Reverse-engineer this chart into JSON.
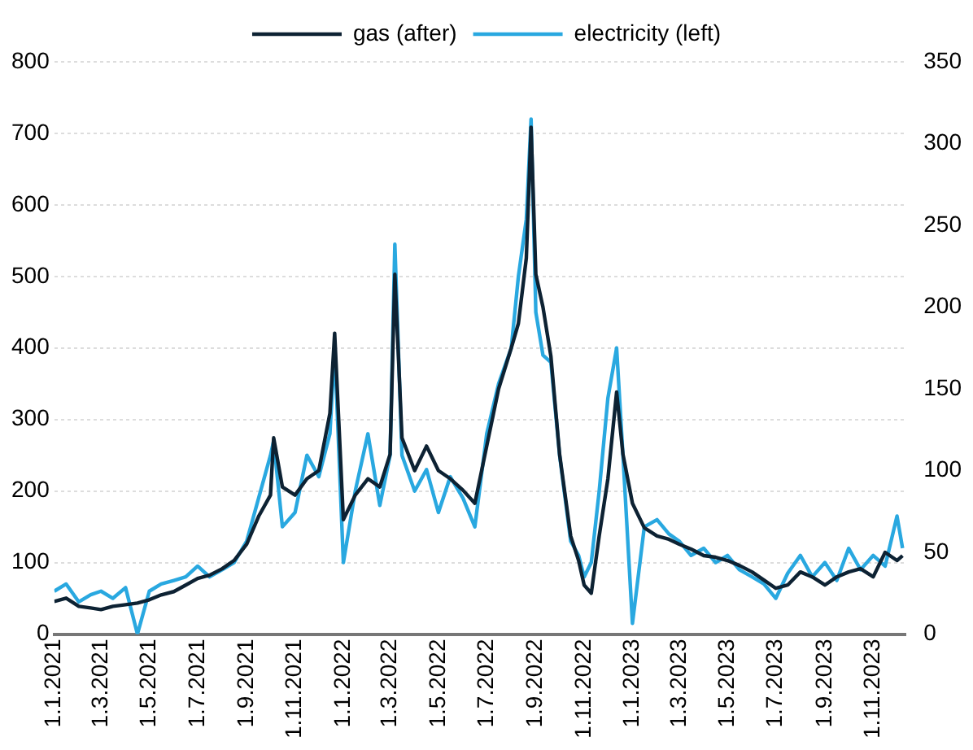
{
  "chart_data": {
    "type": "line",
    "x": [
      "2021-01-01",
      "2021-01-16",
      "2021-02-01",
      "2021-02-16",
      "2021-03-01",
      "2021-03-16",
      "2021-04-01",
      "2021-04-16",
      "2021-05-01",
      "2021-05-16",
      "2021-06-01",
      "2021-06-16",
      "2021-07-01",
      "2021-07-16",
      "2021-08-01",
      "2021-08-16",
      "2021-09-01",
      "2021-09-16",
      "2021-10-01",
      "2021-10-05",
      "2021-10-16",
      "2021-11-01",
      "2021-11-16",
      "2021-12-01",
      "2021-12-15",
      "2021-12-21",
      "2022-01-01",
      "2022-01-16",
      "2022-02-01",
      "2022-02-16",
      "2022-03-01",
      "2022-03-07",
      "2022-03-16",
      "2022-04-01",
      "2022-04-16",
      "2022-05-01",
      "2022-05-16",
      "2022-06-01",
      "2022-06-16",
      "2022-07-01",
      "2022-07-16",
      "2022-08-01",
      "2022-08-10",
      "2022-08-20",
      "2022-08-26",
      "2022-09-01",
      "2022-09-10",
      "2022-09-20",
      "2022-10-01",
      "2022-10-15",
      "2022-10-25",
      "2022-11-01",
      "2022-11-10",
      "2022-11-20",
      "2022-12-01",
      "2022-12-12",
      "2022-12-20",
      "2023-01-01",
      "2023-01-16",
      "2023-02-01",
      "2023-02-16",
      "2023-03-01",
      "2023-03-16",
      "2023-04-01",
      "2023-04-16",
      "2023-05-01",
      "2023-05-16",
      "2023-06-01",
      "2023-06-16",
      "2023-07-01",
      "2023-07-16",
      "2023-08-01",
      "2023-08-16",
      "2023-09-01",
      "2023-09-16",
      "2023-10-01",
      "2023-10-16",
      "2023-11-01",
      "2023-11-16",
      "2023-12-01",
      "2023-12-08"
    ],
    "series": [
      {
        "name": "electricity (left)",
        "color": "#29a8e0",
        "values": [
          60,
          70,
          45,
          55,
          60,
          50,
          65,
          0,
          60,
          70,
          75,
          80,
          95,
          80,
          90,
          100,
          130,
          190,
          250,
          270,
          150,
          170,
          250,
          220,
          280,
          400,
          100,
          200,
          280,
          180,
          250,
          545,
          250,
          200,
          230,
          170,
          220,
          190,
          150,
          280,
          350,
          400,
          500,
          580,
          720,
          450,
          390,
          380,
          250,
          130,
          110,
          80,
          100,
          200,
          330,
          400,
          250,
          15,
          150,
          160,
          140,
          130,
          110,
          120,
          100,
          110,
          90,
          80,
          70,
          50,
          85,
          110,
          80,
          100,
          75,
          120,
          90,
          110,
          95,
          165,
          120
        ]
      },
      {
        "name": "gas (after)",
        "color": "#0d2233",
        "axis": "y2",
        "values": [
          20,
          22,
          17,
          16,
          15,
          17,
          18,
          19,
          21,
          24,
          26,
          30,
          34,
          36,
          40,
          45,
          55,
          72,
          85,
          120,
          90,
          85,
          95,
          100,
          135,
          184,
          70,
          85,
          95,
          90,
          110,
          220,
          120,
          100,
          115,
          100,
          95,
          88,
          80,
          115,
          150,
          175,
          190,
          230,
          310,
          220,
          200,
          170,
          110,
          60,
          45,
          30,
          25,
          60,
          95,
          148,
          110,
          80,
          65,
          60,
          58,
          55,
          52,
          48,
          47,
          45,
          42,
          38,
          33,
          28,
          30,
          38,
          35,
          30,
          35,
          38,
          40,
          35,
          50,
          45,
          48
        ]
      }
    ],
    "xlim": [
      "2021-01-01",
      "2023-12-12"
    ],
    "xticks": [
      {
        "value": "2021-01-01",
        "label": "1.1.2021"
      },
      {
        "value": "2021-03-01",
        "label": "1.3.2021"
      },
      {
        "value": "2021-05-01",
        "label": "1.5.2021"
      },
      {
        "value": "2021-07-01",
        "label": "1.7.2021"
      },
      {
        "value": "2021-09-01",
        "label": "1.9.2021"
      },
      {
        "value": "2021-11-01",
        "label": "1.11.2021"
      },
      {
        "value": "2022-01-01",
        "label": "1.1.2022"
      },
      {
        "value": "2022-03-01",
        "label": "1.3.2022"
      },
      {
        "value": "2022-05-01",
        "label": "1.5.2022"
      },
      {
        "value": "2022-07-01",
        "label": "1.7.2022"
      },
      {
        "value": "2022-09-01",
        "label": "1.9.2022"
      },
      {
        "value": "2022-11-01",
        "label": "1.11.2022"
      },
      {
        "value": "2023-01-01",
        "label": "1.1.2023"
      },
      {
        "value": "2023-03-01",
        "label": "1.3.2023"
      },
      {
        "value": "2023-05-01",
        "label": "1.5.2023"
      },
      {
        "value": "2023-07-01",
        "label": "1.7.2023"
      },
      {
        "value": "2023-09-01",
        "label": "1.9.2023"
      },
      {
        "value": "2023-11-01",
        "label": "1.11.2023"
      }
    ],
    "ylim": [
      0,
      800
    ],
    "yticks": [
      0,
      100,
      200,
      300,
      400,
      500,
      600,
      700,
      800
    ],
    "y2lim": [
      0,
      350
    ],
    "y2ticks": [
      0,
      50,
      100,
      150,
      200,
      250,
      300,
      350
    ],
    "grid": "y",
    "legend": "top",
    "marker": "none",
    "line_style": "solid"
  }
}
